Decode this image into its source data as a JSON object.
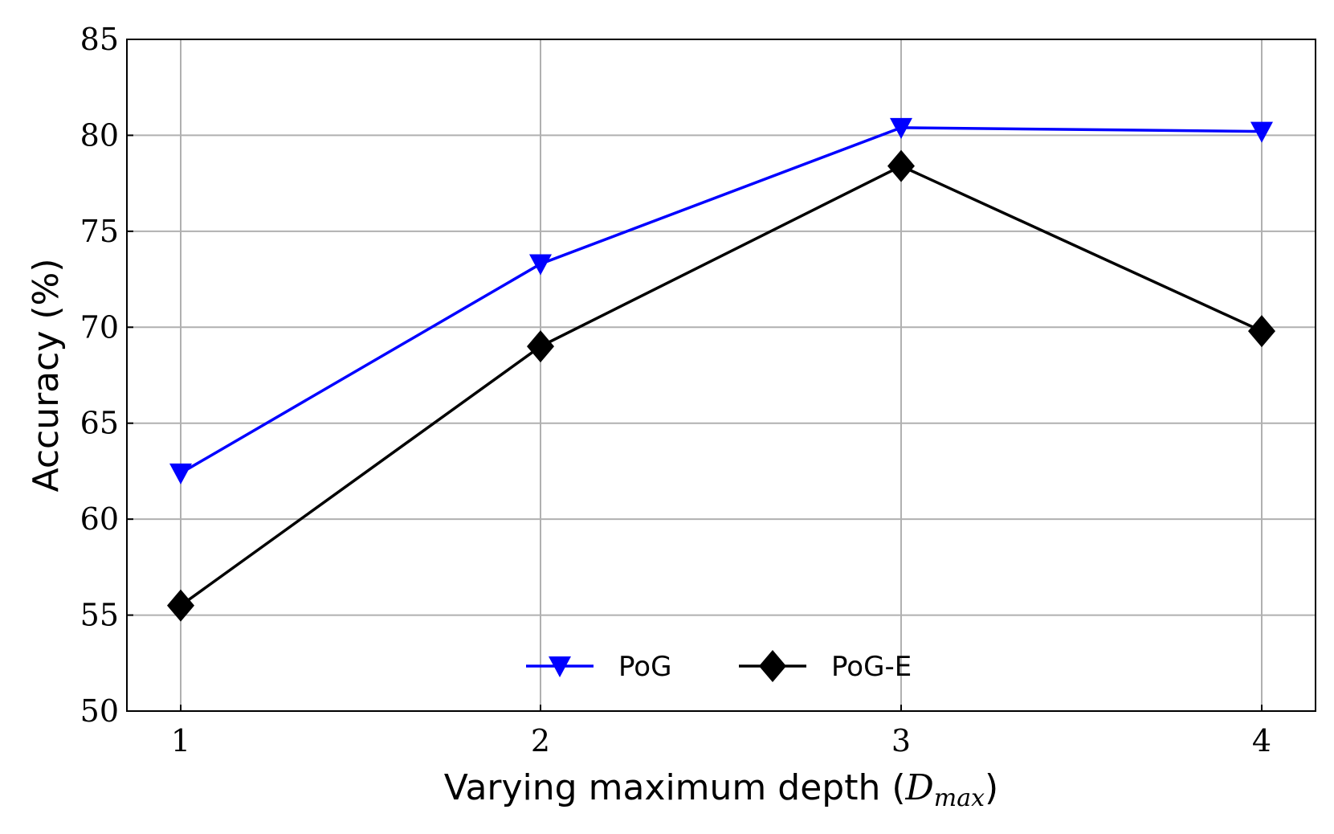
{
  "chart_data": {
    "type": "line",
    "title": "",
    "xlabel": "Varying maximum depth (D_max)",
    "xlabel_main": "Varying maximum depth (",
    "xlabel_sym": "D",
    "xlabel_sub": "max",
    "xlabel_close": ")",
    "ylabel": "Accuracy (%)",
    "x": [
      1,
      2,
      3,
      4
    ],
    "x_ticks": [
      "1",
      "2",
      "3",
      "4"
    ],
    "ylim": [
      50,
      85
    ],
    "y_ticks": [
      "50",
      "55",
      "60",
      "65",
      "70",
      "75",
      "80",
      "85"
    ],
    "grid": true,
    "legend_position": "bottom-center",
    "series": [
      {
        "name": "PoG",
        "color": "#0000ff",
        "marker": "triangle-down",
        "values": [
          62.4,
          73.3,
          80.4,
          80.2
        ]
      },
      {
        "name": "PoG-E",
        "color": "#000000",
        "marker": "diamond",
        "values": [
          55.5,
          69.0,
          78.4,
          69.8
        ]
      }
    ]
  }
}
